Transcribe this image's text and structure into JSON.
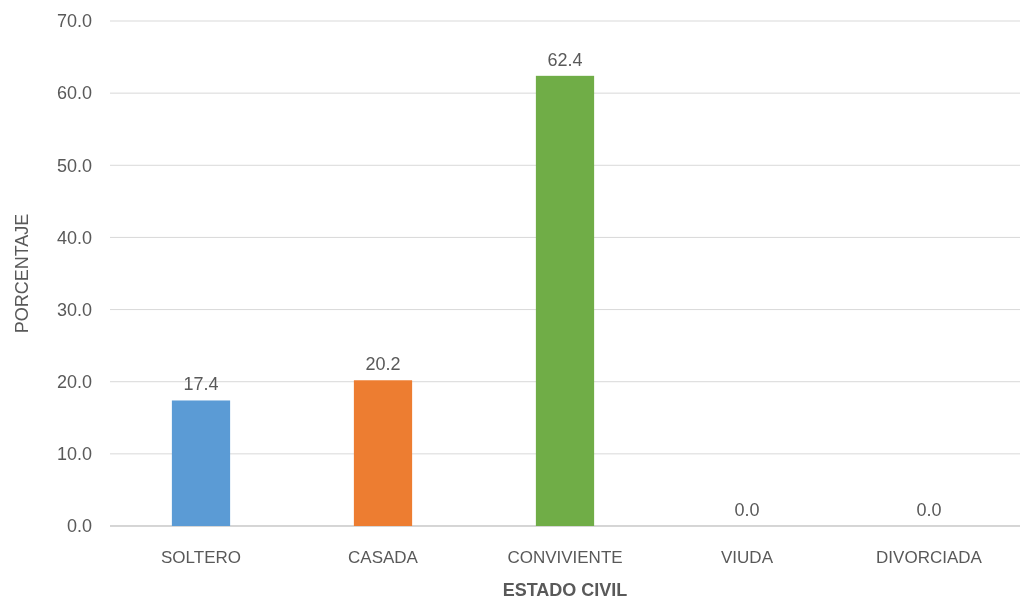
{
  "chart_data": {
    "type": "bar",
    "xlabel": "ESTADO CIVIL",
    "ylabel": "PORCENTAJE",
    "categories": [
      "SOLTERO",
      "CASADA",
      "CONVIVIENTE",
      "VIUDA",
      "DIVORCIADA"
    ],
    "values": [
      17.4,
      20.2,
      62.4,
      0,
      0
    ],
    "colors": [
      "#5b9bd5",
      "#ed7d31",
      "#70ad47",
      "#ffc000",
      "#4472c4"
    ],
    "value_labels": [
      "17.4",
      "20.2",
      "62.4",
      "0.0",
      "0.0"
    ],
    "ylim": [
      0,
      70
    ],
    "yticks": [
      {
        "value": 0,
        "label": "0.0"
      },
      {
        "value": 10,
        "label": "10.0"
      },
      {
        "value": 20,
        "label": "20.0"
      },
      {
        "value": 30,
        "label": "30.0"
      },
      {
        "value": 40,
        "label": "40.0"
      },
      {
        "value": 50,
        "label": "50.0"
      },
      {
        "value": 60,
        "label": "60.0"
      },
      {
        "value": 70,
        "label": "70.0"
      }
    ],
    "grid": "y"
  }
}
